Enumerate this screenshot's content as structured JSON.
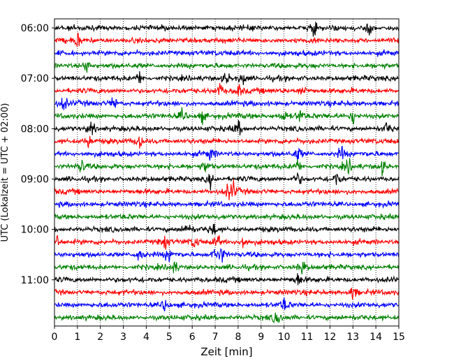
{
  "chart_data": {
    "type": "line",
    "xlabel": "Zeit  [min]",
    "ylabel": "UTC (Lokalzeit = UTC + 02:00)",
    "xlim": [
      0,
      15
    ],
    "x_ticks": [
      0,
      1,
      2,
      3,
      4,
      5,
      6,
      7,
      8,
      9,
      10,
      11,
      12,
      13,
      14,
      15
    ],
    "y_ticks": [
      "06:00",
      "07:00",
      "08:00",
      "09:00",
      "10:00",
      "11:00"
    ],
    "first_trace_start": "06:00",
    "trace_interval_min": 15,
    "trace_colors": [
      "#000000",
      "#ff0000",
      "#0000ff",
      "#008000"
    ],
    "grid": "vertical-dotted",
    "series": [
      {
        "start": "06:00",
        "events": [
          11.3,
          13.7
        ]
      },
      {
        "start": "06:15",
        "events": [
          1.0
        ]
      },
      {
        "start": "06:30",
        "events": []
      },
      {
        "start": "06:45",
        "events": [
          1.4
        ]
      },
      {
        "start": "07:00",
        "events": [
          3.7,
          7.5,
          8.2
        ]
      },
      {
        "start": "07:15",
        "events": [
          7.2,
          8.0,
          10.8
        ]
      },
      {
        "start": "07:30",
        "events": [
          0.4,
          2.6
        ]
      },
      {
        "start": "07:45",
        "events": [
          5.6,
          6.4,
          10.0,
          10.7,
          13.0
        ]
      },
      {
        "start": "08:00",
        "events": [
          1.6,
          8.0,
          14.5
        ]
      },
      {
        "start": "08:15",
        "events": [
          1.5,
          3.7
        ]
      },
      {
        "start": "08:30",
        "events": [
          6.8,
          10.6,
          12.5
        ]
      },
      {
        "start": "08:45",
        "events": [
          1.2,
          6.6,
          10.6,
          12.8,
          14.3
        ]
      },
      {
        "start": "09:00",
        "events": [
          6.8,
          10.6,
          12.3
        ]
      },
      {
        "start": "09:15",
        "events": [
          7.6,
          7.8
        ]
      },
      {
        "start": "09:30",
        "events": []
      },
      {
        "start": "09:45",
        "events": []
      },
      {
        "start": "10:00",
        "events": [
          5.8,
          6.9
        ]
      },
      {
        "start": "10:15",
        "events": [
          0.1,
          4.8,
          6.1,
          7.1,
          8.2
        ]
      },
      {
        "start": "10:30",
        "events": [
          3.7,
          5.0,
          7.0,
          7.3
        ]
      },
      {
        "start": "10:45",
        "events": [
          5.2,
          10.8
        ]
      },
      {
        "start": "11:00",
        "events": [
          10.6
        ]
      },
      {
        "start": "11:15",
        "events": [
          13.0
        ]
      },
      {
        "start": "11:30",
        "events": [
          4.8,
          10.0
        ]
      },
      {
        "start": "11:45",
        "events": [
          9.7
        ]
      }
    ]
  }
}
